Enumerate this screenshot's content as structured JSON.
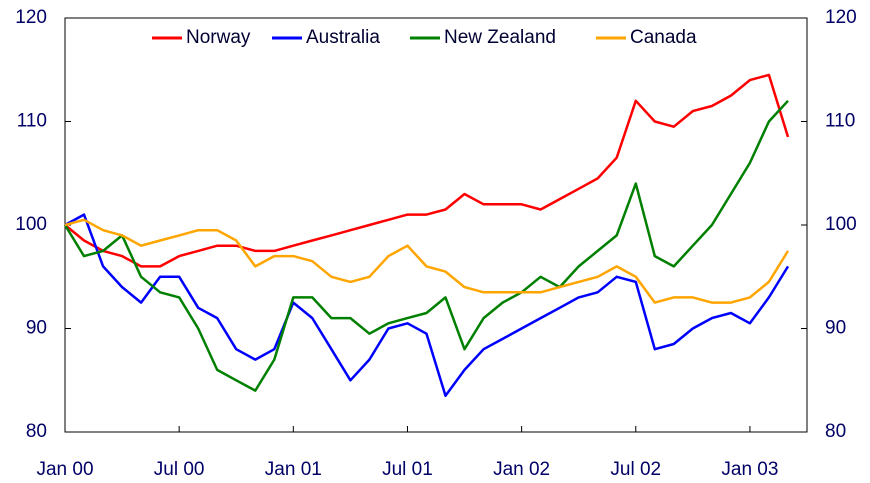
{
  "chart_data": {
    "type": "line",
    "categories": [
      "Jan 00",
      null,
      null,
      null,
      null,
      null,
      "Jul 00",
      null,
      null,
      null,
      null,
      null,
      "Jan 01",
      null,
      null,
      null,
      null,
      null,
      "Jul 01",
      null,
      null,
      null,
      null,
      null,
      "Jan 02",
      null,
      null,
      null,
      null,
      null,
      "Jul 02",
      null,
      null,
      null,
      null,
      null,
      "Jan 03",
      null,
      null
    ],
    "series": [
      {
        "name": "Norway",
        "color": "#ff0000",
        "values": [
          100,
          98.5,
          97.5,
          97,
          96,
          96,
          97,
          97.5,
          98,
          98,
          97.5,
          97.5,
          98,
          98.5,
          99,
          99.5,
          100,
          100.5,
          101,
          101,
          101.5,
          103,
          102,
          102,
          102,
          101.5,
          102.5,
          103.5,
          104.5,
          106.5,
          112,
          110,
          109.5,
          111,
          111.5,
          112.5,
          114,
          114.5,
          108.5
        ]
      },
      {
        "name": "Australia",
        "color": "#0000ff",
        "values": [
          100,
          101,
          96,
          94,
          92.5,
          95,
          95,
          92,
          91,
          88,
          87,
          88,
          92.5,
          91,
          88,
          85,
          87,
          90,
          90.5,
          89.5,
          83.5,
          86,
          88,
          89,
          90,
          91,
          92,
          93,
          93.5,
          95,
          94.5,
          88,
          88.5,
          90,
          91,
          91.5,
          90.5,
          93,
          96
        ]
      },
      {
        "name": "New Zealand",
        "color": "#008000",
        "values": [
          100,
          97,
          97.5,
          99,
          95,
          93.5,
          93,
          90,
          86,
          85,
          84,
          87,
          93,
          93,
          91,
          91,
          89.5,
          90.5,
          91,
          91.5,
          93,
          88,
          91,
          92.5,
          93.5,
          95,
          94,
          96,
          97.5,
          99,
          104,
          97,
          96,
          98,
          100,
          103,
          106,
          110,
          112
        ]
      },
      {
        "name": "Canada",
        "color": "#ffa500",
        "values": [
          100,
          100.5,
          99.5,
          99,
          98,
          98.5,
          99,
          99.5,
          99.5,
          98.5,
          96,
          97,
          97,
          96.5,
          95,
          94.5,
          95,
          97,
          98,
          96,
          95.5,
          94,
          93.5,
          93.5,
          93.5,
          93.5,
          94,
          94.5,
          95,
          96,
          95,
          92.5,
          93,
          93,
          92.5,
          92.5,
          93,
          94.5,
          97.5
        ]
      }
    ],
    "ylim": [
      80,
      120
    ],
    "yticks": [
      80,
      90,
      100,
      110,
      120
    ],
    "y2lim": [
      80,
      120
    ],
    "y2ticks": [
      80,
      90,
      100,
      110,
      120
    ]
  }
}
